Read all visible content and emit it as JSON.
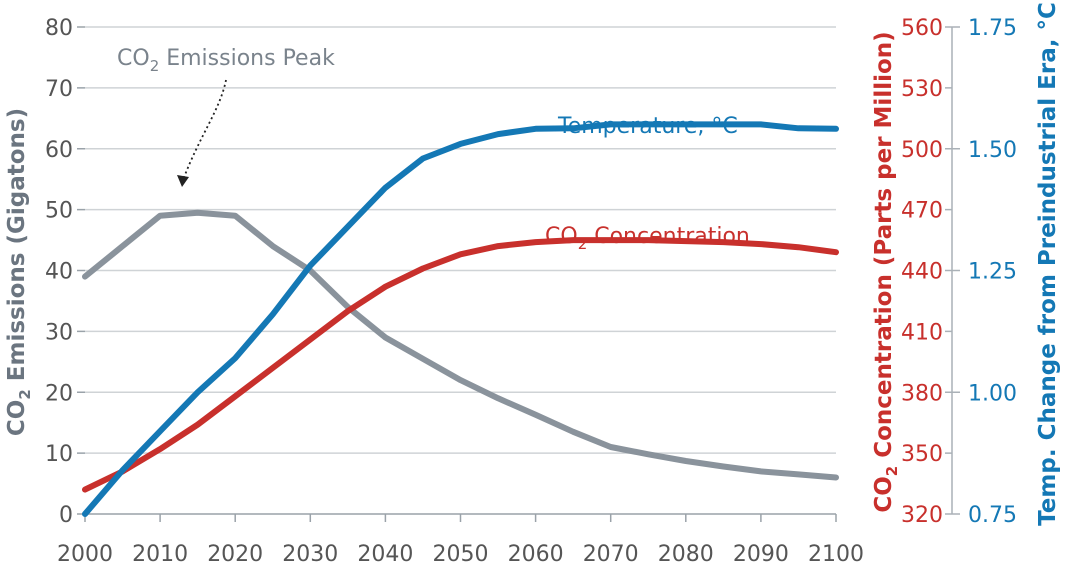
{
  "chart_data": {
    "type": "line",
    "x": [
      2000,
      2005,
      2010,
      2015,
      2020,
      2025,
      2030,
      2035,
      2040,
      2045,
      2050,
      2055,
      2060,
      2065,
      2070,
      2075,
      2080,
      2085,
      2090,
      2095,
      2100
    ],
    "x_ticks": [
      "2000",
      "2010",
      "2020",
      "2030",
      "2040",
      "2050",
      "2060",
      "2070",
      "2080",
      "2090",
      "2100"
    ],
    "xlim": [
      2000,
      2100
    ],
    "axes": {
      "left": {
        "label_main": "CO",
        "label_sub": "2",
        "label_rest": " Emissions (Gigatons)",
        "ticks": [
          "0",
          "10",
          "20",
          "30",
          "40",
          "50",
          "60",
          "70",
          "80"
        ],
        "ylim": [
          0,
          80
        ],
        "color": "#6b7580"
      },
      "right_concentration": {
        "label_main": "CO",
        "label_sub": "2",
        "label_rest": " Concentration (Parts per Million)",
        "ticks": [
          "320",
          "350",
          "380",
          "410",
          "440",
          "470",
          "500",
          "530",
          "560"
        ],
        "ylim": [
          320,
          560
        ],
        "color": "#c8302c"
      },
      "right_temperature": {
        "label": "Temp. Change from Preindustrial Era, °C",
        "ticks": [
          "0.75",
          "1.00",
          "1.25",
          "1.50",
          "1.75"
        ],
        "ylim": [
          0.75,
          1.75
        ],
        "color": "#1478b5"
      }
    },
    "grid": true,
    "series": [
      {
        "name": "CO₂ Emissions",
        "axis": "left",
        "color": "#8a939c",
        "values": [
          39,
          44,
          49,
          49.5,
          49,
          44,
          40,
          34,
          29,
          25.5,
          22,
          19,
          16.3,
          13.5,
          11,
          9.8,
          8.7,
          7.8,
          7,
          6.5,
          6
        ]
      },
      {
        "name": "CO₂ Concentration",
        "axis": "right_concentration",
        "color": "#c8302c",
        "values": [
          332,
          341,
          352,
          364,
          378,
          392,
          406,
          420,
          432,
          441,
          448,
          452,
          454,
          455,
          455,
          455,
          454.5,
          454,
          453,
          451.5,
          449
        ]
      },
      {
        "name": "Temperature, °C",
        "axis": "right_temperature",
        "color": "#1478b5",
        "values": [
          0.75,
          0.84,
          0.92,
          1.0,
          1.07,
          1.16,
          1.26,
          1.34,
          1.42,
          1.48,
          1.51,
          1.53,
          1.541,
          1.542,
          1.55,
          1.55,
          1.55,
          1.55,
          1.55,
          1.542,
          1.541
        ]
      }
    ],
    "annotations": {
      "emissions_peak": {
        "main": "CO",
        "sub": "2",
        "rest": " Emissions Peak",
        "x": 2013,
        "y": 51.5
      },
      "concentration_label": {
        "main": "CO",
        "sub": "2",
        "rest": " Concentration"
      },
      "temperature_label": {
        "text": "Temperature, °C"
      }
    }
  }
}
